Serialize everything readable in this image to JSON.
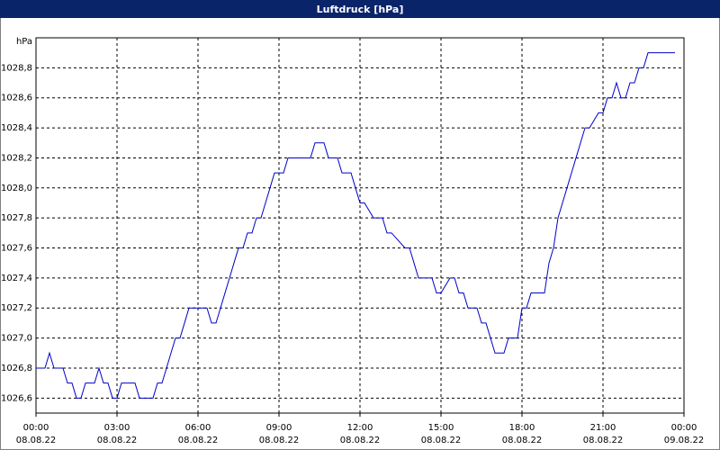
{
  "chart_data": {
    "type": "line",
    "title": "Luftdruck [hPa]",
    "y_unit": "hPa",
    "x": [
      0,
      20,
      30,
      40,
      60,
      70,
      80,
      90,
      100,
      110,
      130,
      140,
      150,
      160,
      170,
      180,
      190,
      220,
      230,
      260,
      270,
      280,
      290,
      300,
      310,
      320,
      330,
      340,
      350,
      380,
      390,
      400,
      410,
      420,
      430,
      440,
      450,
      460,
      470,
      480,
      490,
      500,
      510,
      520,
      530,
      550,
      560,
      610,
      620,
      640,
      650,
      670,
      680,
      700,
      710,
      720,
      730,
      750,
      760,
      770,
      780,
      790,
      820,
      830,
      840,
      850,
      860,
      880,
      890,
      900,
      920,
      930,
      940,
      950,
      960,
      980,
      990,
      1000,
      1010,
      1020,
      1040,
      1050,
      1070,
      1080,
      1090,
      1100,
      1130,
      1140,
      1150,
      1160,
      1170,
      1180,
      1190,
      1200,
      1210,
      1220,
      1230,
      1250,
      1260,
      1270,
      1280,
      1290,
      1300,
      1310,
      1320,
      1330,
      1340,
      1350,
      1360,
      1370,
      1380,
      1390,
      1400,
      1420
    ],
    "series": [
      {
        "name": "Luftdruck",
        "color": "#0000c8",
        "values": [
          1026.8,
          1026.8,
          1026.9,
          1026.8,
          1026.8,
          1026.7,
          1026.7,
          1026.6,
          1026.6,
          1026.7,
          1026.7,
          1026.8,
          1026.7,
          1026.7,
          1026.6,
          1026.6,
          1026.7,
          1026.7,
          1026.6,
          1026.6,
          1026.7,
          1026.7,
          1026.8,
          1026.9,
          1027.0,
          1027.0,
          1027.1,
          1027.2,
          1027.2,
          1027.2,
          1027.1,
          1027.1,
          1027.2,
          1027.3,
          1027.4,
          1027.5,
          1027.6,
          1027.6,
          1027.7,
          1027.7,
          1027.8,
          1027.8,
          1027.9,
          1028.0,
          1028.1,
          1028.1,
          1028.2,
          1028.2,
          1028.3,
          1028.3,
          1028.2,
          1028.2,
          1028.1,
          1028.1,
          1028.0,
          1027.9,
          1027.9,
          1027.8,
          1027.8,
          1027.8,
          1027.7,
          1027.7,
          1027.6,
          1027.6,
          1027.5,
          1027.4,
          1027.4,
          1027.4,
          1027.3,
          1027.3,
          1027.4,
          1027.4,
          1027.3,
          1027.3,
          1027.2,
          1027.2,
          1027.1,
          1027.1,
          1027.0,
          1026.9,
          1026.9,
          1027.0,
          1027.0,
          1027.2,
          1027.2,
          1027.3,
          1027.3,
          1027.5,
          1027.6,
          1027.8,
          1027.9,
          1028.0,
          1028.1,
          1028.2,
          1028.3,
          1028.4,
          1028.4,
          1028.5,
          1028.5,
          1028.6,
          1028.6,
          1028.7,
          1028.6,
          1028.6,
          1028.7,
          1028.7,
          1028.8,
          1028.8,
          1028.9,
          1028.9,
          1028.9,
          1028.9,
          1028.9,
          1028.9
        ]
      }
    ],
    "xlim": [
      0,
      1440
    ],
    "xticks": [
      {
        "value": 0,
        "label": "00:00"
      },
      {
        "value": 180,
        "label": "03:00"
      },
      {
        "value": 360,
        "label": "06:00"
      },
      {
        "value": 540,
        "label": "09:00"
      },
      {
        "value": 720,
        "label": "12:00"
      },
      {
        "value": 900,
        "label": "15:00"
      },
      {
        "value": 1080,
        "label": "18:00"
      },
      {
        "value": 1260,
        "label": "21:00"
      },
      {
        "value": 1440,
        "label": "00:00"
      }
    ],
    "xtick_dates": [
      "08.08.22",
      "08.08.22",
      "08.08.22",
      "08.08.22",
      "08.08.22",
      "08.08.22",
      "08.08.22",
      "08.08.22",
      "09.08.22"
    ],
    "ylim": [
      1026.5,
      1029.0
    ],
    "yticks": [
      {
        "value": 1026.6,
        "label": "1026,6"
      },
      {
        "value": 1026.8,
        "label": "1026,8"
      },
      {
        "value": 1027.0,
        "label": "1027,0"
      },
      {
        "value": 1027.2,
        "label": "1027,2"
      },
      {
        "value": 1027.4,
        "label": "1027,4"
      },
      {
        "value": 1027.6,
        "label": "1027,6"
      },
      {
        "value": 1027.8,
        "label": "1027,8"
      },
      {
        "value": 1028.0,
        "label": "1028,0"
      },
      {
        "value": 1028.2,
        "label": "1028,2"
      },
      {
        "value": 1028.4,
        "label": "1028,4"
      },
      {
        "value": 1028.6,
        "label": "1028,6"
      },
      {
        "value": 1028.8,
        "label": "1028,8"
      }
    ],
    "grid": true
  }
}
